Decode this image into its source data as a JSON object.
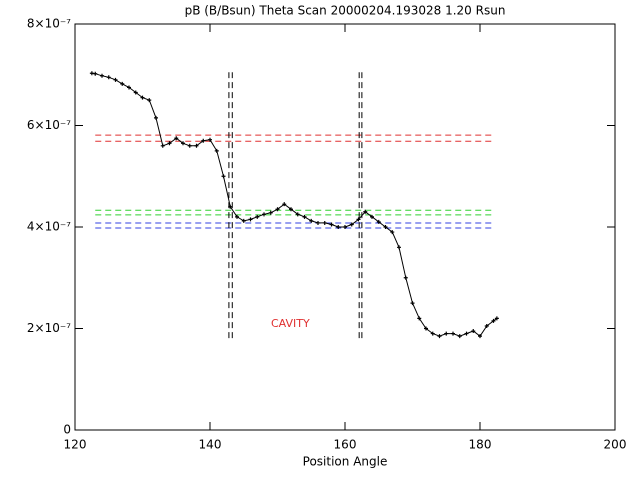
{
  "chart_data": {
    "type": "line",
    "title": "pB (B/Bsun) Theta Scan 20000204.193028 1.20 Rsun",
    "x_label": "Position Angle",
    "color": "#000000",
    "x": [
      122.5,
      123,
      124,
      125,
      126,
      127,
      128,
      129,
      130,
      131,
      132,
      133,
      134,
      135,
      136,
      137,
      138,
      139,
      140,
      141,
      142,
      143,
      144,
      145,
      146,
      147,
      148,
      149,
      150,
      151,
      152,
      153,
      154,
      155,
      156,
      157,
      158,
      159,
      160,
      161,
      162,
      163,
      164,
      165,
      166,
      167,
      168,
      169,
      170,
      171,
      172,
      173,
      174,
      175,
      176,
      177,
      178,
      179,
      180,
      181,
      182,
      182.5
    ],
    "values": [
      7.03e-07,
      7.02e-07,
      6.98e-07,
      6.95e-07,
      6.9e-07,
      6.82e-07,
      6.75e-07,
      6.65e-07,
      6.55e-07,
      6.5e-07,
      6.15e-07,
      5.6e-07,
      5.65e-07,
      5.75e-07,
      5.65e-07,
      5.6e-07,
      5.6e-07,
      5.7e-07,
      5.72e-07,
      5.5e-07,
      5e-07,
      4.4e-07,
      4.2e-07,
      4.12e-07,
      4.15e-07,
      4.2e-07,
      4.25e-07,
      4.28e-07,
      4.35e-07,
      4.45e-07,
      4.35e-07,
      4.25e-07,
      4.2e-07,
      4.12e-07,
      4.08e-07,
      4.08e-07,
      4.05e-07,
      4e-07,
      4e-07,
      4.05e-07,
      4.15e-07,
      4.3e-07,
      4.2e-07,
      4.1e-07,
      4e-07,
      3.9e-07,
      3.6e-07,
      3e-07,
      2.5e-07,
      2.2e-07,
      2e-07,
      1.9e-07,
      1.85e-07,
      1.9e-07,
      1.9e-07,
      1.85e-07,
      1.9e-07,
      1.95e-07,
      1.85e-07,
      2.05e-07,
      2.15e-07,
      2.2e-07
    ],
    "xlim": [
      120,
      200
    ],
    "xticks": [
      120,
      140,
      160,
      180,
      200
    ],
    "ylim": [
      0,
      8e-07
    ],
    "yticks": [
      0,
      {
        "value": 2e-07,
        "label": "2×10⁻⁷"
      },
      {
        "value": 4e-07,
        "label": "4×10⁻⁷"
      },
      {
        "value": 6e-07,
        "label": "6×10⁻⁷"
      },
      {
        "value": 8e-07,
        "label": "8×10⁻⁷"
      }
    ],
    "hlines": [
      {
        "y": 5.81e-07,
        "xlim": [
          123,
          182
        ],
        "color": "#e03030"
      },
      {
        "y": 5.69e-07,
        "xlim": [
          123,
          182
        ],
        "color": "#e03030"
      },
      {
        "y": 4.33e-07,
        "xlim": [
          123,
          182
        ],
        "color": "#30d030"
      },
      {
        "y": 4.24e-07,
        "xlim": [
          123,
          182
        ],
        "color": "#30d030"
      },
      {
        "y": 4.08e-07,
        "xlim": [
          123,
          182
        ],
        "color": "#3040e0"
      },
      {
        "y": 3.98e-07,
        "xlim": [
          123,
          182
        ],
        "color": "#3040e0"
      }
    ],
    "vlines": [
      {
        "x": 142.8,
        "ylim": [
          1.81e-07,
          7.05e-07
        ],
        "color": "#000000"
      },
      {
        "x": 143.3,
        "ylim": [
          1.81e-07,
          7.05e-07
        ],
        "color": "#000000"
      },
      {
        "x": 162.1,
        "ylim": [
          1.81e-07,
          7.05e-07
        ],
        "color": "#000000"
      },
      {
        "x": 162.5,
        "ylim": [
          1.81e-07,
          7.05e-07
        ],
        "color": "#000000"
      }
    ],
    "annotation": {
      "text": "CAVITY",
      "x": 151.9,
      "y": 2.09e-07,
      "color": "#e03030"
    }
  }
}
